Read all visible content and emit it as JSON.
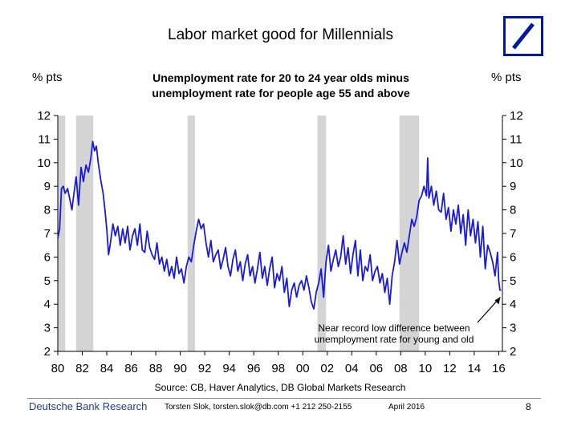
{
  "header": {
    "title": "Labor market good for Millennials"
  },
  "logo": {
    "name": "deutsche-bank-logo",
    "color": "#0018a8"
  },
  "chart_data": {
    "type": "line",
    "subtitle_lines": [
      "Unemployment rate for 20 to 24 year olds minus",
      "unemployment rate for people age 55 and above"
    ],
    "ylabel_left": "% pts",
    "ylabel_right": "% pts",
    "ylim": [
      2,
      12
    ],
    "yticks": [
      2,
      3,
      4,
      5,
      6,
      7,
      8,
      9,
      10,
      11,
      12
    ],
    "xlim": [
      1980,
      2016.3
    ],
    "xticks": [
      1980,
      1982,
      1984,
      1986,
      1988,
      1990,
      1992,
      1994,
      1996,
      1998,
      2000,
      2002,
      2004,
      2006,
      2008,
      2010,
      2012,
      2014,
      2016
    ],
    "xtick_labels": [
      "80",
      "82",
      "84",
      "86",
      "88",
      "90",
      "92",
      "94",
      "96",
      "98",
      "00",
      "02",
      "04",
      "06",
      "08",
      "10",
      "12",
      "14",
      "16"
    ],
    "grid": false,
    "line_color": "#1a1adb",
    "recession_color": "#d4d4d4",
    "recessions": [
      [
        1980.0,
        1980.6
      ],
      [
        1981.5,
        1982.9
      ],
      [
        1990.6,
        1991.2
      ],
      [
        2001.2,
        2001.9
      ],
      [
        2007.9,
        2009.5
      ]
    ],
    "series": [
      {
        "x": [
          1980.0,
          1980.15,
          1980.3,
          1980.45,
          1980.6,
          1980.8,
          1981.0,
          1981.15,
          1981.3,
          1981.5,
          1981.7,
          1981.9,
          1982.1,
          1982.3,
          1982.5,
          1982.7,
          1982.85,
          1983.0,
          1983.15,
          1983.3,
          1983.5,
          1983.7,
          1983.85,
          1984.0,
          1984.15,
          1984.3,
          1984.5,
          1984.7,
          1984.9,
          1985.1,
          1985.3,
          1985.5,
          1985.7,
          1985.9,
          1986.1,
          1986.3,
          1986.5,
          1986.7,
          1986.9,
          1987.1,
          1987.3,
          1987.5,
          1987.7,
          1987.9,
          1988.1,
          1988.3,
          1988.5,
          1988.7,
          1988.9,
          1989.1,
          1989.3,
          1989.5,
          1989.7,
          1989.9,
          1990.1,
          1990.3,
          1990.5,
          1990.7,
          1990.9,
          1991.1,
          1991.3,
          1991.5,
          1991.7,
          1991.9,
          1992.1,
          1992.3,
          1992.5,
          1992.7,
          1992.9,
          1993.1,
          1993.3,
          1993.5,
          1993.7,
          1993.9,
          1994.1,
          1994.3,
          1994.5,
          1994.7,
          1994.9,
          1995.1,
          1995.3,
          1995.5,
          1995.7,
          1995.9,
          1996.1,
          1996.3,
          1996.5,
          1996.7,
          1996.9,
          1997.1,
          1997.3,
          1997.5,
          1997.7,
          1997.9,
          1998.1,
          1998.3,
          1998.5,
          1998.7,
          1998.9,
          1999.1,
          1999.3,
          1999.5,
          1999.7,
          1999.9,
          2000.1,
          2000.3,
          2000.5,
          2000.7,
          2000.9,
          2001.1,
          2001.3,
          2001.5,
          2001.7,
          2001.9,
          2002.1,
          2002.3,
          2002.5,
          2002.7,
          2002.9,
          2003.1,
          2003.3,
          2003.5,
          2003.7,
          2003.9,
          2004.1,
          2004.3,
          2004.5,
          2004.7,
          2004.9,
          2005.1,
          2005.3,
          2005.5,
          2005.7,
          2005.9,
          2006.1,
          2006.3,
          2006.5,
          2006.7,
          2006.9,
          2007.1,
          2007.3,
          2007.5,
          2007.7,
          2007.9,
          2008.1,
          2008.3,
          2008.5,
          2008.7,
          2008.9,
          2009.1,
          2009.3,
          2009.5,
          2009.7,
          2009.9,
          2010.1,
          2010.2,
          2010.3,
          2010.5,
          2010.7,
          2010.9,
          2011.1,
          2011.3,
          2011.5,
          2011.7,
          2011.9,
          2012.1,
          2012.3,
          2012.5,
          2012.7,
          2012.9,
          2013.1,
          2013.3,
          2013.5,
          2013.7,
          2013.9,
          2014.1,
          2014.3,
          2014.5,
          2014.7,
          2014.9,
          2015.1,
          2015.3,
          2015.5,
          2015.7,
          2015.9,
          2016.0,
          2016.1,
          2016.2
        ],
        "y": [
          6.8,
          7.2,
          8.9,
          9.0,
          8.7,
          8.9,
          8.4,
          8.0,
          8.6,
          9.4,
          8.2,
          9.8,
          9.2,
          9.9,
          9.6,
          10.2,
          10.9,
          10.5,
          10.7,
          10.0,
          9.3,
          8.7,
          8.0,
          7.2,
          6.1,
          6.6,
          7.4,
          6.9,
          7.3,
          6.5,
          7.2,
          6.6,
          7.3,
          6.3,
          6.9,
          7.2,
          6.5,
          7.4,
          6.3,
          6.2,
          7.1,
          6.4,
          6.1,
          5.9,
          6.6,
          5.7,
          6.0,
          5.4,
          5.9,
          5.2,
          5.6,
          5.1,
          6.0,
          5.3,
          5.5,
          4.9,
          5.6,
          6.0,
          5.8,
          6.5,
          7.1,
          7.6,
          7.2,
          7.4,
          6.6,
          6.0,
          6.7,
          5.8,
          6.1,
          6.3,
          5.5,
          5.9,
          6.4,
          5.6,
          5.2,
          5.9,
          6.3,
          5.4,
          5.8,
          5.0,
          5.7,
          6.1,
          5.2,
          5.6,
          4.9,
          5.5,
          6.2,
          5.1,
          5.6,
          4.8,
          5.5,
          6.0,
          4.7,
          5.3,
          5.0,
          5.6,
          4.5,
          5.1,
          3.9,
          4.6,
          4.9,
          4.3,
          4.8,
          5.0,
          4.6,
          5.2,
          4.7,
          4.1,
          3.8,
          4.5,
          4.9,
          5.5,
          4.3,
          5.8,
          6.5,
          5.4,
          5.9,
          6.3,
          5.6,
          6.0,
          6.9,
          5.7,
          6.4,
          5.3,
          6.1,
          6.7,
          5.2,
          6.3,
          5.0,
          5.6,
          5.4,
          6.1,
          5.0,
          5.4,
          5.6,
          4.9,
          5.3,
          4.5,
          5.1,
          4.0,
          5.2,
          5.8,
          6.7,
          5.7,
          6.2,
          6.6,
          6.2,
          6.9,
          7.6,
          7.3,
          7.7,
          8.4,
          8.6,
          9.0,
          8.6,
          10.2,
          8.5,
          9.0,
          8.2,
          8.8,
          8.0,
          7.9,
          8.7,
          7.6,
          8.1,
          7.1,
          8.0,
          7.4,
          8.2,
          7.0,
          7.8,
          6.5,
          8.0,
          6.9,
          7.6,
          6.6,
          7.5,
          6.0,
          7.3,
          5.5,
          6.5,
          6.2,
          5.8,
          5.2,
          6.2,
          5.0,
          4.6,
          4.6
        ]
      }
    ],
    "annotation_lines": [
      "Near record low difference between",
      "unemployment rate for young and old"
    ],
    "source": "Source: CB, Haver Analytics, DB Global Markets Research"
  },
  "footer": {
    "brand": "Deutsche Bank Research",
    "contact": "Torsten Slok, torsten.slok@db.com +1 212 250-2155",
    "date": "April 2016",
    "page_number": "8"
  }
}
